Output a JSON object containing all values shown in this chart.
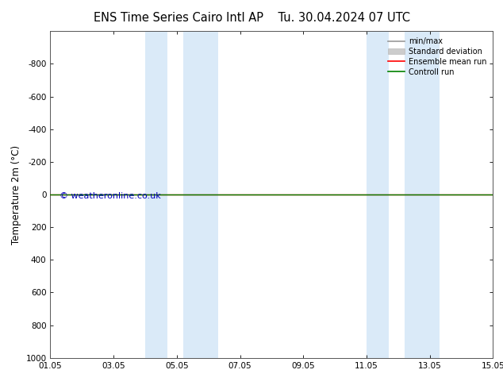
{
  "title_left": "ENS Time Series Cairo Intl AP",
  "title_right": "Tu. 30.04.2024 07 UTC",
  "ylabel": "Temperature 2m (°C)",
  "ylim_bottom": 1000,
  "ylim_top": -1000,
  "yticks": [
    -800,
    -600,
    -400,
    -200,
    0,
    200,
    400,
    600,
    800,
    1000
  ],
  "xtick_labels": [
    "01.05",
    "03.05",
    "05.05",
    "07.05",
    "09.05",
    "11.05",
    "13.05",
    "15.05"
  ],
  "xtick_positions": [
    0,
    2,
    4,
    6,
    8,
    10,
    12,
    14
  ],
  "shaded_bands": [
    {
      "start": 3.0,
      "end": 3.7
    },
    {
      "start": 4.2,
      "end": 5.3
    },
    {
      "start": 10.0,
      "end": 10.7
    },
    {
      "start": 11.2,
      "end": 12.3
    }
  ],
  "shade_color": "#daeaf8",
  "green_line_color": "#008000",
  "red_line_color": "#ff0000",
  "minmax_color": "#999999",
  "stddev_color": "#cccccc",
  "watermark": "© weatheronline.co.uk",
  "watermark_color": "#0000bb",
  "background_color": "#ffffff",
  "legend_labels": [
    "min/max",
    "Standard deviation",
    "Ensemble mean run",
    "Controll run"
  ],
  "legend_colors": [
    "#999999",
    "#cccccc",
    "#ff0000",
    "#008000"
  ],
  "title_fontsize": 10.5,
  "label_fontsize": 8.5,
  "tick_fontsize": 7.5
}
